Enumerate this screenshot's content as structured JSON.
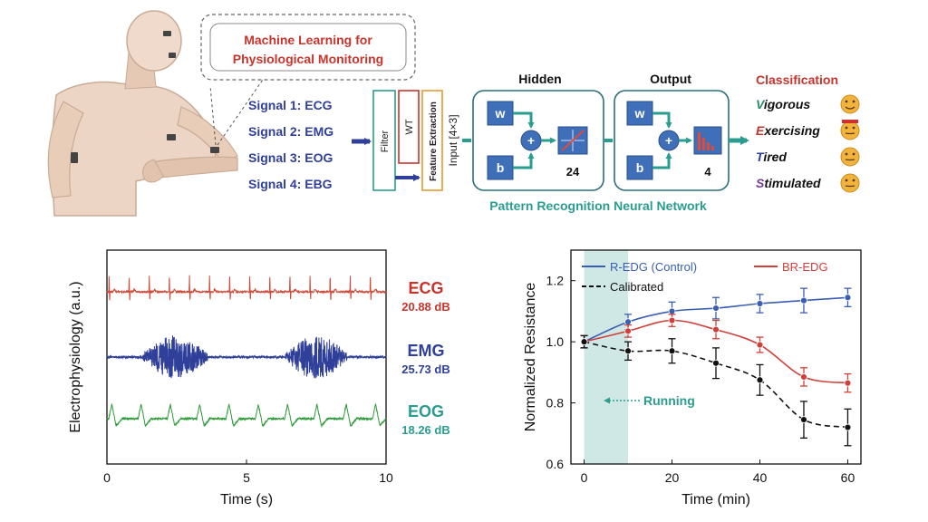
{
  "diagram": {
    "title_line1": "Machine Learning for",
    "title_line2": "Physiological Monitoring",
    "signals": [
      "Signal 1: ECG",
      "Signal 2: EMG",
      "Signal 3: EOG",
      "Signal 4: EBG"
    ],
    "stages": {
      "filter": "Filter",
      "wt": "WT",
      "feature": "Feature Extraction"
    },
    "input_label": "Input [4×3]",
    "hidden_title": "Hidden",
    "output_title": "Output",
    "weight_symbol": "w",
    "bias_symbol": "b",
    "plus_symbol": "+",
    "hidden_count": "24",
    "output_count": "4",
    "network_label": "Pattern Recognition Neural Network",
    "classification_title": "Classification",
    "classes": [
      {
        "initial": "V",
        "rest": "igorous",
        "color": "#2e8b6e"
      },
      {
        "initial": "E",
        "rest": "xercising",
        "color": "#c8342c"
      },
      {
        "initial": "T",
        "rest": "ired",
        "color": "#2f3f9a"
      },
      {
        "initial": "S",
        "rest": "timulated",
        "color": "#7a3b9a"
      }
    ],
    "colors": {
      "title": "#c8342c",
      "signal": "#2f3f9a",
      "teal": "#2a9d8f",
      "box_stroke": "#333333"
    }
  },
  "chart_data": [
    {
      "type": "line",
      "xlabel": "Time (s)",
      "ylabel": "Electrophysiology (a.u.)",
      "xlim": [
        0,
        10
      ],
      "xticks": [
        0,
        5,
        10
      ],
      "series": [
        {
          "name": "ECG",
          "snr": "20.88 dB",
          "color": "#d04a3a"
        },
        {
          "name": "EMG",
          "snr": "25.73 dB",
          "color": "#2f3f9a"
        },
        {
          "name": "EOG",
          "snr": "18.26 dB",
          "color": "#2e9a3a"
        }
      ],
      "emg_bursts": [
        [
          1.3,
          3.6
        ],
        [
          6.4,
          8.6
        ]
      ]
    },
    {
      "type": "line",
      "xlabel": "Time (min)",
      "ylabel": "Normalized Resistance",
      "xlim": [
        -3,
        63
      ],
      "ylim": [
        0.6,
        1.3
      ],
      "xticks": [
        0,
        20,
        40,
        60
      ],
      "yticks": [
        0.6,
        0.8,
        1.0,
        1.2
      ],
      "ytick_labels": [
        "0.6",
        "0.8",
        "1.0",
        "1.2"
      ],
      "shaded_region": [
        0,
        10
      ],
      "annotation": "Running",
      "legend_position": "top",
      "x": [
        0,
        10,
        20,
        30,
        40,
        50,
        60
      ],
      "series": [
        {
          "name": "R-EDG (Control)",
          "color": "#3a5fb0",
          "dash": false,
          "values": [
            1.0,
            1.065,
            1.1,
            1.11,
            1.125,
            1.135,
            1.145
          ],
          "errors": [
            0.02,
            0.025,
            0.03,
            0.035,
            0.03,
            0.04,
            0.03
          ]
        },
        {
          "name": "BR-EDG",
          "color": "#d0403a",
          "dash": false,
          "values": [
            1.0,
            1.035,
            1.07,
            1.04,
            0.99,
            0.885,
            0.865
          ],
          "errors": [
            0.02,
            0.02,
            0.02,
            0.03,
            0.025,
            0.03,
            0.03
          ]
        },
        {
          "name": "Calibrated",
          "color": "#111111",
          "dash": true,
          "values": [
            1.0,
            0.97,
            0.97,
            0.93,
            0.875,
            0.745,
            0.72
          ],
          "errors": [
            0.02,
            0.03,
            0.04,
            0.05,
            0.05,
            0.06,
            0.06
          ]
        }
      ]
    }
  ]
}
